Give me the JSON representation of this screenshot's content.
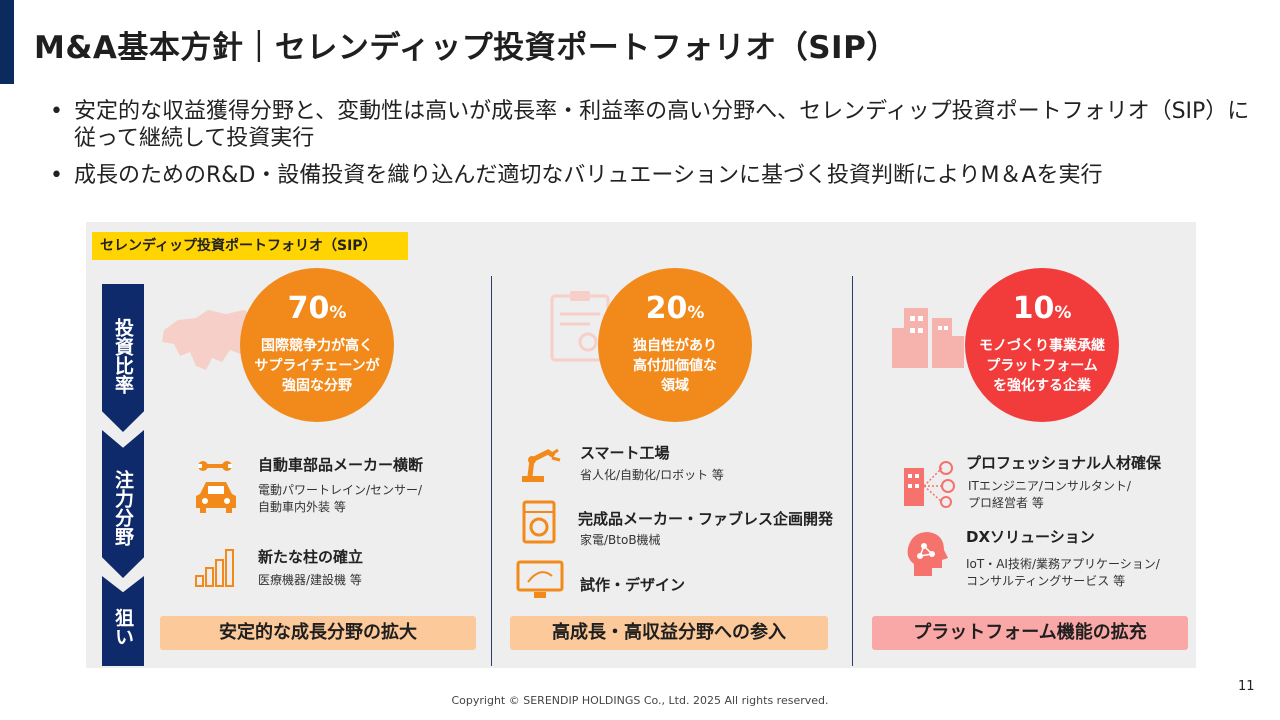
{
  "header": {
    "title": "M&A基本方針｜セレンディップ投資ポートフォリオ（SIP）"
  },
  "bullets": [
    "安定的な収益獲得分野と、変動性は高いが成長率・利益率の高い分野へ、セレンディップ投資ポートフォリオ（SIP）に従って継続して投資実行",
    "成長のためのR&D・設備投資を織り込んだ適切なバリュエーションに基づく投資判断によりM＆Aを実行"
  ],
  "bullet_marker": "•",
  "panel": {
    "label": "セレンディップ投資ポートフォリオ（SIP）",
    "sidebar": {
      "segment1": "投資比率",
      "segment2": "注力分野",
      "segment3": "狙い"
    },
    "columns": [
      {
        "percent": "70",
        "percent_unit": "%",
        "caption": "国際競争力が高く\nサプライチェーンが\n強固な分野",
        "color": "#f28a1b",
        "items": [
          {
            "title": "自動車部品メーカー横断",
            "sub": "電動パワートレイン/センサー/\n自動車内外装 等"
          },
          {
            "title": "新たな柱の確立",
            "sub": "医療機器/建設機 等"
          }
        ],
        "goal": "安定的な成長分野の拡大",
        "goal_color": "#fcc99a"
      },
      {
        "percent": "20",
        "percent_unit": "%",
        "caption": "独自性があり\n高付加価値な\n領域",
        "color": "#f28a1b",
        "items": [
          {
            "title": "スマート工場",
            "sub": "省人化/自動化/ロボット 等"
          },
          {
            "title": "完成品メーカー・ファブレス企画開発",
            "sub": "家電/BtoB機械"
          },
          {
            "title": "試作・デザイン",
            "sub": ""
          }
        ],
        "goal": "高成長・高収益分野への参入",
        "goal_color": "#fcc99a"
      },
      {
        "percent": "10",
        "percent_unit": "%",
        "caption": "モノづくり事業承継\nプラットフォーム\nを強化する企業",
        "color": "#f23c3c",
        "items": [
          {
            "title": "プロフェッショナル人材確保",
            "sub": "ITエンジニア/コンサルタント/\nプロ経営者 等"
          },
          {
            "title": "DXソリューション",
            "sub": "IoT・AI技術/業務アプリケーション/\nコンサルティングサービス 等"
          }
        ],
        "goal": "プラットフォーム機能の拡充",
        "goal_color": "#f9a7a7"
      }
    ]
  },
  "footer": {
    "copyright": "Copyright © SERENDIP HOLDINGS Co., Ltd.  2025 All rights reserved.",
    "page_number": "11"
  }
}
